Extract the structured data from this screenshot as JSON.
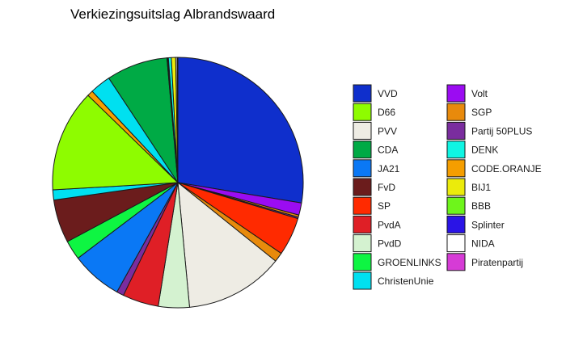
{
  "chart_data": {
    "type": "pie",
    "title": "Verkiezingsuitslag Albrandswaard",
    "start": "top",
    "direction": "clockwise",
    "slices": [
      {
        "label": "VVD",
        "value": 29.7,
        "color": "#0f2fcc"
      },
      {
        "label": "Volt",
        "value": 1.7,
        "color": "#9b0cf2"
      },
      {
        "label": "SGP",
        "value": 0.3,
        "color": "#e88a0c"
      },
      {
        "label": "Partij 50PLUS",
        "value": 0.2,
        "color": "#7a2d9e"
      },
      {
        "label": "SP",
        "value": 5.3,
        "color": "#ff2a00"
      },
      {
        "label": "SGP",
        "value": 1.3,
        "color": "#e88a0c"
      },
      {
        "label": "PVV",
        "value": 13.7,
        "color": "#eeece4"
      },
      {
        "label": "PvdD",
        "value": 4.3,
        "color": "#d4f2d0"
      },
      {
        "label": "PvdA",
        "value": 5.0,
        "color": "#df1f26"
      },
      {
        "label": "Partij 50PLUS",
        "value": 1.0,
        "color": "#7a2d9e"
      },
      {
        "label": "JA21",
        "value": 7.1,
        "color": "#0a78f5"
      },
      {
        "label": "GROENLINKS",
        "value": 2.7,
        "color": "#0ef542"
      },
      {
        "label": "FvD",
        "value": 6.0,
        "color": "#6b1c1c"
      },
      {
        "label": "ChristenUnie",
        "value": 1.4,
        "color": "#00e0f0"
      },
      {
        "label": "D66",
        "value": 14.2,
        "color": "#8efc00"
      },
      {
        "label": "CODE.ORANJE",
        "value": 0.8,
        "color": "#f59e00"
      },
      {
        "label": "ChristenUnie",
        "value": 2.9,
        "color": "#00e0f0"
      },
      {
        "label": "CDA",
        "value": 8.5,
        "color": "#00aa45"
      },
      {
        "label": "Splinter",
        "value": 0.1,
        "color": "#2a14e6"
      },
      {
        "label": "BBB",
        "value": 0.1,
        "color": "#6ef51b"
      },
      {
        "label": "DENK",
        "value": 0.4,
        "color": "#0ff5e3"
      },
      {
        "label": "BIJ1",
        "value": 0.6,
        "color": "#ebeb0b"
      },
      {
        "label": "NIDA",
        "value": 0.2,
        "color": "#ffffff"
      },
      {
        "label": "Piratenpartij",
        "value": 0.1,
        "color": "#d63bd6"
      }
    ],
    "legend": {
      "position": "right",
      "columns": [
        [
          {
            "label": "VVD",
            "color": "#0f2fcc"
          },
          {
            "label": "D66",
            "color": "#8efc00"
          },
          {
            "label": "PVV",
            "color": "#eeece4"
          },
          {
            "label": "CDA",
            "color": "#00aa45"
          },
          {
            "label": "JA21",
            "color": "#0a78f5"
          },
          {
            "label": "FvD",
            "color": "#6b1c1c"
          },
          {
            "label": "SP",
            "color": "#ff2a00"
          },
          {
            "label": "PvdA",
            "color": "#df1f26"
          },
          {
            "label": "PvdD",
            "color": "#d4f2d0"
          },
          {
            "label": "GROENLINKS",
            "color": "#0ef542"
          },
          {
            "label": "ChristenUnie",
            "color": "#00e0f0"
          }
        ],
        [
          {
            "label": "Volt",
            "color": "#9b0cf2"
          },
          {
            "label": "SGP",
            "color": "#e88a0c"
          },
          {
            "label": "Partij 50PLUS",
            "color": "#7a2d9e"
          },
          {
            "label": "DENK",
            "color": "#0ff5e3"
          },
          {
            "label": "CODE.ORANJE",
            "color": "#f59e00"
          },
          {
            "label": "BIJ1",
            "color": "#ebeb0b"
          },
          {
            "label": "BBB",
            "color": "#6ef51b"
          },
          {
            "label": "Splinter",
            "color": "#2a14e6"
          },
          {
            "label": "NIDA",
            "color": "#ffffff"
          },
          {
            "label": "Piratenpartij",
            "color": "#d63bd6"
          }
        ]
      ]
    }
  }
}
